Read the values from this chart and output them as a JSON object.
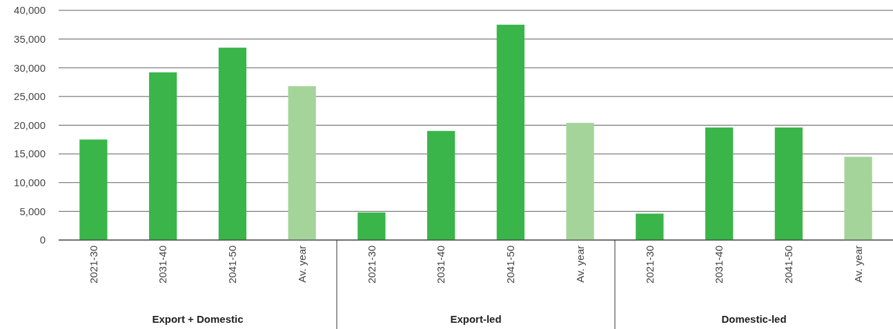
{
  "chart_data": {
    "type": "bar",
    "categories": [
      "2021-30",
      "2031-40",
      "2041-50",
      "Av. year",
      "2021-30",
      "2031-40",
      "2041-50",
      "Av. year",
      "2021-30",
      "2031-40",
      "2041-50",
      "Av. year"
    ],
    "values": [
      17500,
      29200,
      33500,
      26800,
      4800,
      19000,
      37500,
      20400,
      4600,
      19600,
      19600,
      14500
    ],
    "colors": [
      "#3ab54a",
      "#3ab54a",
      "#3ab54a",
      "#a5d49b",
      "#3ab54a",
      "#3ab54a",
      "#3ab54a",
      "#a5d49b",
      "#3ab54a",
      "#3ab54a",
      "#3ab54a",
      "#a5d49b"
    ],
    "ylim": [
      0,
      40000
    ],
    "yticks": [
      {
        "value": 0,
        "label": "0"
      },
      {
        "value": 5000,
        "label": "5,000"
      },
      {
        "value": 10000,
        "label": "10,000"
      },
      {
        "value": 15000,
        "label": "15,000"
      },
      {
        "value": 20000,
        "label": "20,000"
      },
      {
        "value": 25000,
        "label": "25,000"
      },
      {
        "value": 30000,
        "label": "30,000"
      },
      {
        "value": 35000,
        "label": "35,000"
      },
      {
        "value": 40000,
        "label": "40,000"
      }
    ],
    "grid": "y",
    "annotations": [
      "Export + Domestic",
      "Export-led",
      "Domestic-led"
    ]
  }
}
